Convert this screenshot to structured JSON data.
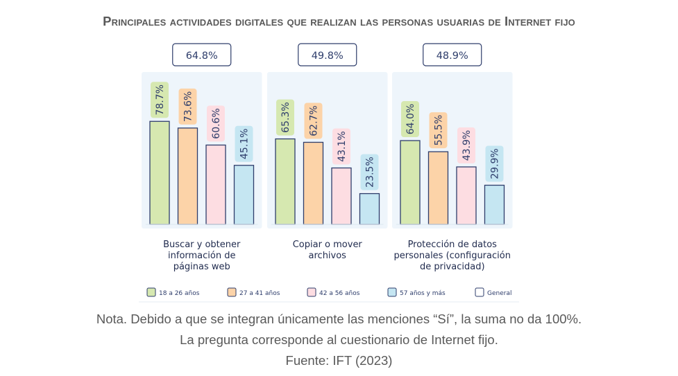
{
  "title": "Principales actividades digitales que realizan las personas usuarias de Internet fijo",
  "notes": {
    "line1": "Nota. Debido a que se integran únicamente las menciones “Sí”, la suma no da 100%.",
    "line2": "La pregunta corresponde al cuestionario de Internet fijo.",
    "line3": "Fuente: IFT (2023)"
  },
  "colors": {
    "g18": "#d6e8b0",
    "g27": "#fcd3a8",
    "g42": "#fddde2",
    "g57": "#c5e6f2",
    "general": "#ffffff",
    "stroke": "#2e3d6b",
    "panel": "#eef5fb"
  },
  "chart_data": {
    "type": "bar",
    "categories": [
      [
        "Buscar y obtener",
        "información de",
        "páginas web"
      ],
      [
        "Copiar o mover",
        "archivos"
      ],
      [
        "Protección de datos",
        "personales (configuración",
        "de privacidad)"
      ]
    ],
    "general_values": [
      "64.8%",
      "49.8%",
      "48.9%"
    ],
    "series": [
      {
        "name": "18 a 26 años",
        "color_key": "g18",
        "values": [
          78.7,
          65.3,
          64.0
        ],
        "labels": [
          "78.7%",
          "65.3%",
          "64.0%"
        ]
      },
      {
        "name": "27 a 41 años",
        "color_key": "g27",
        "values": [
          73.6,
          62.7,
          55.5
        ],
        "labels": [
          "73.6%",
          "62.7%",
          "55.5%"
        ]
      },
      {
        "name": "42 a 56 años",
        "color_key": "g42",
        "values": [
          60.6,
          43.1,
          43.9
        ],
        "labels": [
          "60.6%",
          "43.1%",
          "43.9%"
        ]
      },
      {
        "name": "57 años y más",
        "color_key": "g57",
        "values": [
          45.1,
          23.5,
          29.9
        ],
        "labels": [
          "45.1%",
          "23.5%",
          "29.9%"
        ]
      }
    ],
    "legend": [
      "18 a 26 años",
      "27 a 41 años",
      "42 a 56 años",
      "57 años y más",
      "General"
    ],
    "legend_colors": [
      "g18",
      "g27",
      "g42",
      "g57",
      "general"
    ],
    "legend_position": "bottom",
    "ylim": [
      0,
      100
    ],
    "grid": false
  }
}
